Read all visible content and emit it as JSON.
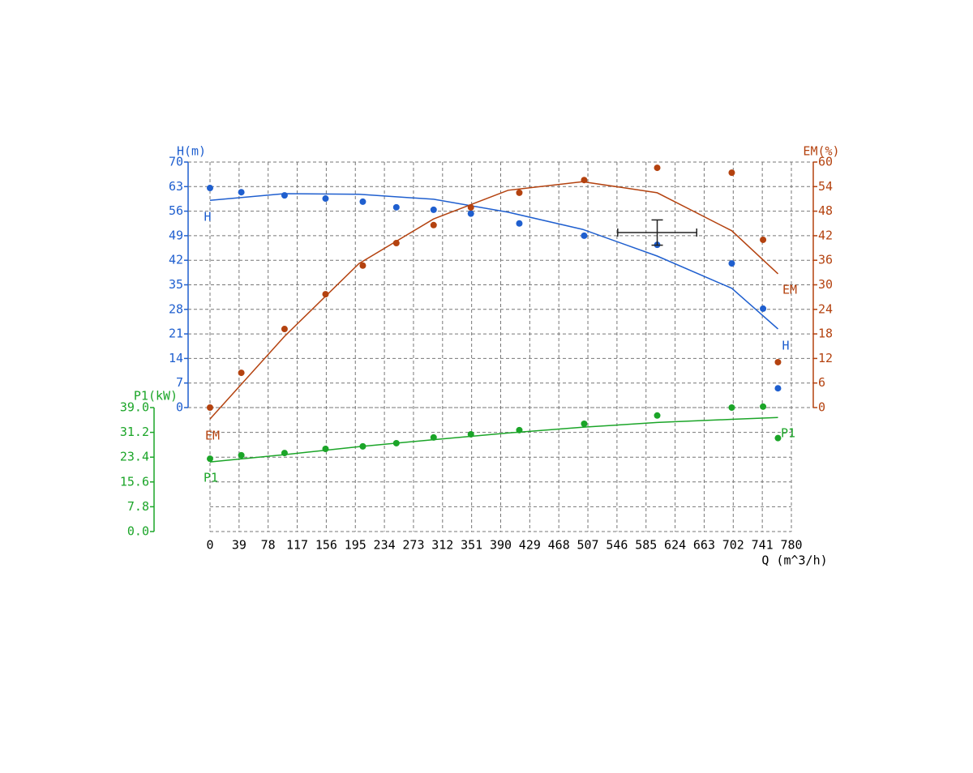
{
  "chart_data": {
    "type": "line",
    "x_label": "Q (m^3/h)",
    "xlim": [
      0,
      780
    ],
    "xticks": [
      0,
      39,
      78,
      117,
      156,
      195,
      234,
      273,
      312,
      351,
      390,
      429,
      468,
      507,
      546,
      585,
      624,
      663,
      702,
      741,
      780
    ],
    "y_label": "H(m)",
    "ylim": [
      0,
      70
    ],
    "yticks": [
      0,
      7,
      14,
      21,
      28,
      35,
      42,
      49,
      56,
      63,
      70
    ],
    "y2_label": "EM(%)",
    "y2lim": [
      0,
      60
    ],
    "y2ticks": [
      0,
      6,
      12,
      18,
      24,
      30,
      36,
      42,
      48,
      54,
      60
    ],
    "y3_label": "P1(kW)",
    "y3lim": [
      0,
      39
    ],
    "y3ticks": [
      {
        "value": 0,
        "label": "0.0"
      },
      7.8,
      15.6,
      23.4,
      31.2,
      {
        "value": 39,
        "label": "39.0"
      }
    ],
    "grid": true,
    "x": [
      0,
      42,
      100,
      155,
      205,
      250,
      300,
      350,
      415,
      502,
      600,
      700,
      742,
      762
    ],
    "fit_x": [
      0,
      100,
      200,
      300,
      400,
      500,
      600,
      700,
      762
    ],
    "series": [
      {
        "name": "H",
        "color": "#1f5fcf",
        "axis": "y",
        "values": [
          62.6,
          61.4,
          60.5,
          59.6,
          58.7,
          57.1,
          56.4,
          55.3,
          52.5,
          49.0,
          46.4,
          41.1,
          28.2,
          5.5
        ],
        "fit_values": [
          59.1,
          61.0,
          60.8,
          59.4,
          55.7,
          50.8,
          43.2,
          34.0,
          22.4
        ]
      },
      {
        "name": "EM",
        "color": "#b4420f",
        "axis": "y2",
        "values": [
          0,
          8.5,
          19.2,
          27.7,
          34.7,
          40.2,
          44.6,
          48.9,
          52.5,
          55.6,
          58.6,
          57.4,
          41.0,
          11.1
        ],
        "fit_values": [
          -2.8,
          17.4,
          35.2,
          46.1,
          53.1,
          55.2,
          52.5,
          43.2,
          32.7
        ]
      },
      {
        "name": "P1",
        "color": "#1ba528",
        "axis": "y3",
        "values": [
          22.9,
          24.0,
          24.7,
          26.0,
          26.8,
          27.8,
          29.6,
          30.6,
          31.9,
          33.9,
          36.5,
          39.0,
          39.3,
          29.4
        ],
        "fit_values": [
          21.9,
          24.2,
          26.7,
          28.9,
          31.0,
          32.8,
          34.3,
          35.3,
          35.9
        ]
      }
    ],
    "marker": {
      "q": 600,
      "h": 49.9,
      "q_err": 53,
      "h_err": 3.6
    }
  }
}
